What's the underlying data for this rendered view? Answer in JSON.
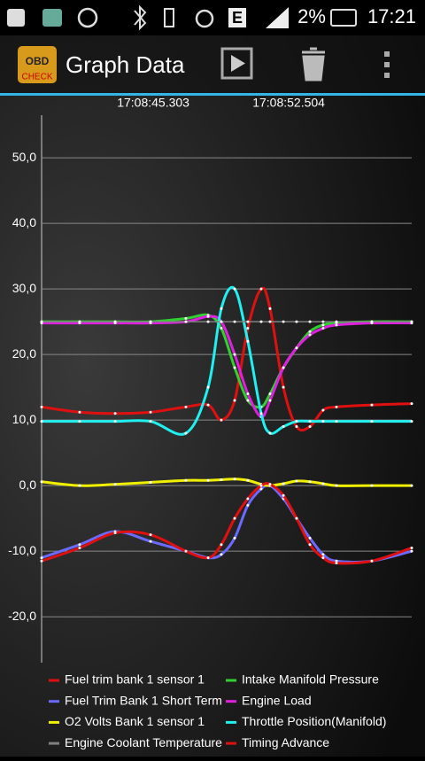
{
  "status_bar": {
    "battery": "2%",
    "time": "17:21",
    "network": "E"
  },
  "app_bar": {
    "title": "Graph Data",
    "logo_top": "OBD",
    "logo_bottom": "CHECK"
  },
  "chart_data": {
    "type": "line",
    "x": [
      61719.37,
      61721.39,
      61723.28,
      61725.16,
      61727.04,
      61728.22,
      61728.92,
      61729.63,
      61730.33,
      61731.04,
      61731.51,
      61732.22,
      61732.92,
      61733.63,
      61734.33,
      61735.04,
      61736.92,
      61739.04
    ],
    "xlim": [
      61719.37,
      61739.04
    ],
    "xticks": [
      {
        "value": 61725.303,
        "label": "17:08:45.303"
      },
      {
        "value": 61732.504,
        "label": "17:08:52.504"
      }
    ],
    "ylim": [
      -27,
      56.5
    ],
    "yticks": [
      {
        "value": -20,
        "label": "-20,0"
      },
      {
        "value": -10,
        "label": "-10,0"
      },
      {
        "value": 0,
        "label": "0,0"
      },
      {
        "value": 10,
        "label": "10,0"
      },
      {
        "value": 20,
        "label": "20,0"
      },
      {
        "value": 30,
        "label": "30,0"
      },
      {
        "value": 40,
        "label": "40,0"
      },
      {
        "value": 50,
        "label": "50,0"
      }
    ],
    "grid": true,
    "series": [
      {
        "name": "Fuel trim bank 1 sensor 1",
        "color": "#e01010",
        "values": [
          12,
          11.2,
          11,
          11.2,
          12,
          12.3,
          10,
          13,
          24,
          30,
          27,
          15,
          9,
          9,
          11.5,
          12,
          12.3,
          12.5
        ]
      },
      {
        "name": "Intake Manifold Pressure",
        "color": "#30d030",
        "values": [
          25,
          25,
          25,
          25,
          25.5,
          26,
          24,
          18,
          13,
          12,
          14,
          18,
          21,
          23.5,
          24.5,
          24.8,
          25,
          25
        ]
      },
      {
        "name": "Fuel Trim Bank 1 Short Term",
        "color": "#6a6aff",
        "values": [
          -11,
          -9,
          -7,
          -8.5,
          -10,
          -11,
          -10.5,
          -8,
          -3,
          -0.5,
          0,
          -2,
          -5,
          -8,
          -10.5,
          -11.5,
          -11.5,
          -10
        ]
      },
      {
        "name": "Engine Load",
        "color": "#e020e0",
        "values": [
          24.8,
          24.8,
          24.8,
          24.8,
          25,
          25.8,
          25,
          20,
          14,
          10.5,
          13,
          18,
          21,
          23,
          24,
          24.5,
          24.8,
          24.8
        ]
      },
      {
        "name": "O2 Volts Bank 1 sensor 1",
        "color": "#f0f000",
        "values": [
          0.6,
          0,
          0.2,
          0.5,
          0.8,
          0.8,
          0.9,
          1,
          0.8,
          0.2,
          0,
          0.3,
          0.7,
          0.6,
          0.3,
          0,
          0,
          0
        ]
      },
      {
        "name": "Throttle Position(Manifold)",
        "color": "#20f0f0",
        "values": [
          9.8,
          9.8,
          9.8,
          9.8,
          8,
          15,
          27,
          30,
          22,
          11,
          8,
          9,
          9.8,
          9.8,
          9.8,
          9.8,
          9.8,
          9.8
        ]
      },
      {
        "name": "Engine Coolant Temperature",
        "color": "#808080",
        "values": [
          25,
          25,
          25,
          25,
          25,
          25,
          25,
          25,
          25,
          25,
          25,
          25,
          25,
          25,
          25,
          25,
          25,
          25
        ]
      },
      {
        "name": "Timing Advance",
        "color": "#e01010",
        "values": [
          -11.5,
          -9.5,
          -7.2,
          -7.5,
          -10,
          -11,
          -9,
          -5,
          -2,
          0,
          0.2,
          -1.5,
          -5,
          -9,
          -11,
          -11.8,
          -11.5,
          -9.5
        ]
      }
    ]
  }
}
